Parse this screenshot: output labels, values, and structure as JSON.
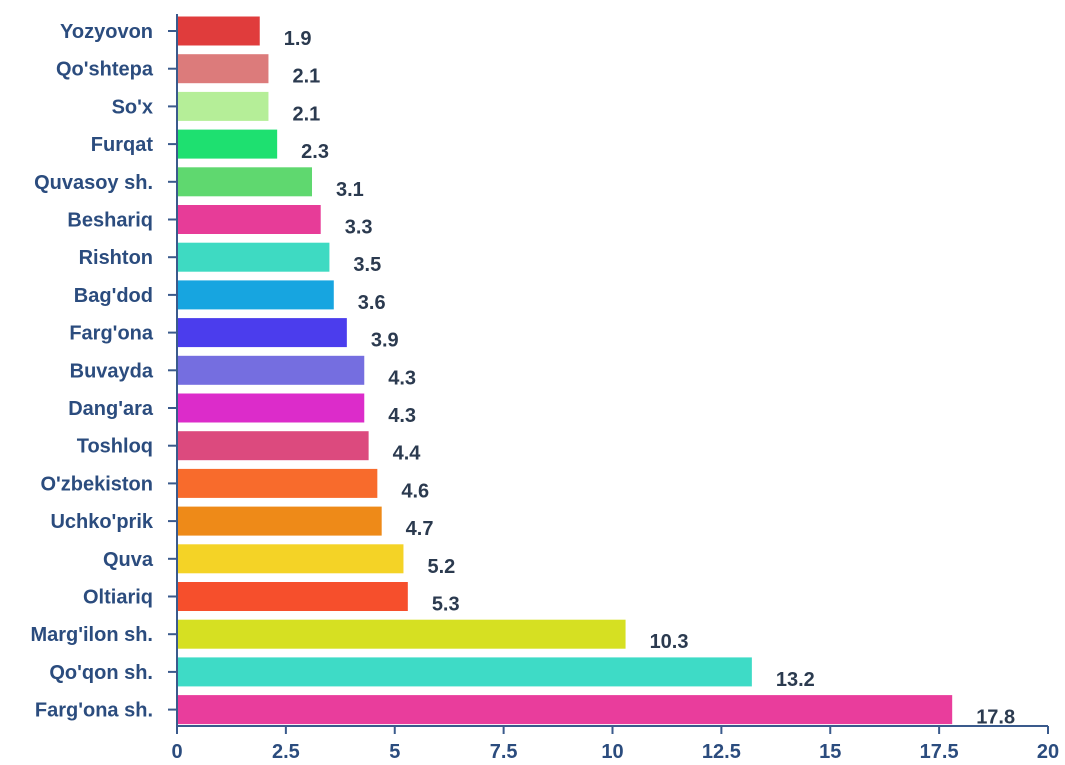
{
  "chart_data": {
    "type": "bar",
    "orientation": "horizontal",
    "categories": [
      "Yozyovon",
      "Qo'shtepa",
      "So'x",
      "Furqat",
      "Quvasoy sh.",
      "Beshariq",
      "Rishton",
      "Bag'dod",
      "Farg'ona",
      "Buvayda",
      "Dang'ara",
      "Toshloq",
      "O'zbekiston",
      "Uchko'prik",
      "Quva",
      "Oltiariq",
      "Marg'ilon sh.",
      "Qo'qon sh.",
      "Farg'ona sh."
    ],
    "values": [
      1.9,
      2.1,
      2.1,
      2.3,
      3.1,
      3.3,
      3.5,
      3.6,
      3.9,
      4.3,
      4.3,
      4.4,
      4.6,
      4.7,
      5.2,
      5.3,
      10.3,
      13.2,
      17.8
    ],
    "value_labels": [
      "1.9",
      "2.1",
      "2.1",
      "2.3",
      "3.1",
      "3.3",
      "3.5",
      "3.6",
      "3.9",
      "4.3",
      "4.3",
      "4.4",
      "4.6",
      "4.7",
      "5.2",
      "5.3",
      "10.3",
      "13.2",
      "17.8"
    ],
    "colors": [
      "#e03c3c",
      "#dc7b7b",
      "#b5ee98",
      "#1ee070",
      "#5fd86f",
      "#e73c98",
      "#3edac2",
      "#17a5e0",
      "#4b3ded",
      "#756ee0",
      "#dc2cca",
      "#dc4a7e",
      "#f86b2c",
      "#ee8a18",
      "#f4d326",
      "#f64f2c",
      "#d6e022",
      "#3edbc6",
      "#e93d9c"
    ],
    "xticks": [
      "0",
      "2.5",
      "5",
      "7.5",
      "10",
      "12.5",
      "15",
      "17.5",
      "20"
    ],
    "xlim": [
      0,
      20
    ],
    "grid": false,
    "title": "",
    "xlabel": "",
    "ylabel": ""
  }
}
